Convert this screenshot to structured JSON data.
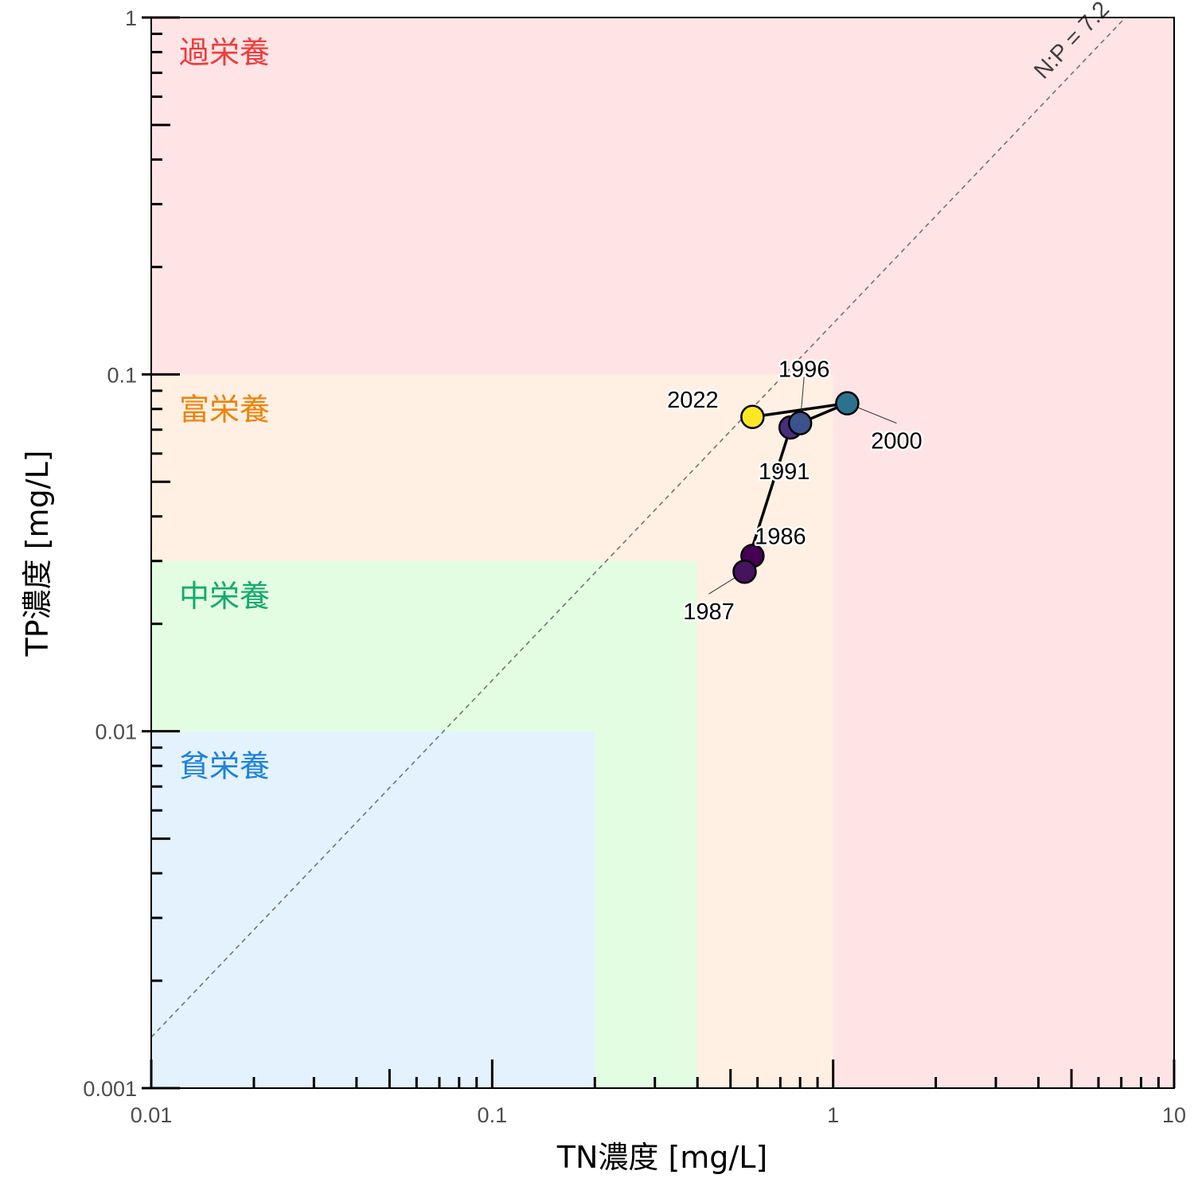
{
  "chart_data": {
    "type": "scatter",
    "xlabel": "TN濃度 [mg/L]",
    "ylabel": "TP濃度 [mg/L]",
    "xscale": "log",
    "yscale": "log",
    "xlim": [
      0.01,
      10
    ],
    "ylim": [
      0.001,
      1
    ],
    "x_ticks": [
      "0.01",
      "0.1",
      "1",
      "10"
    ],
    "y_ticks": [
      "0.001",
      "0.01",
      "0.1",
      "1"
    ],
    "grid": false,
    "zones": [
      {
        "label": "過栄養",
        "tn_max": 10,
        "tp_max": 1,
        "fill": "#ffe4e6",
        "text_color": "#f03c3c"
      },
      {
        "label": "富栄養",
        "tn_max": 1,
        "tp_max": 0.1,
        "fill": "#fff0e3",
        "text_color": "#f0820a"
      },
      {
        "label": "中栄養",
        "tn_max": 0.4,
        "tp_max": 0.03,
        "fill": "#e3fde3",
        "text_color": "#14aa6e"
      },
      {
        "label": "貧栄養",
        "tn_max": 0.2,
        "tp_max": 0.01,
        "fill": "#e4f2fd",
        "text_color": "#1e82dc"
      }
    ],
    "ratio_line": {
      "label": "N:P = 7.2",
      "ratio": 7.2
    },
    "points": [
      {
        "year": "1986",
        "x": 0.58,
        "y": 0.031,
        "color": "#440154",
        "label_dx": 35,
        "label_dy": -25,
        "leader": false
      },
      {
        "year": "1987",
        "x": 0.55,
        "y": 0.028,
        "color": "#46135f",
        "label_dx": -45,
        "label_dy": 50,
        "leader": true
      },
      {
        "year": "1991",
        "x": 0.75,
        "y": 0.071,
        "color": "#472d7b",
        "label_dx": -8,
        "label_dy": 55,
        "leader": false
      },
      {
        "year": "1996",
        "x": 0.8,
        "y": 0.073,
        "color": "#3b528b",
        "label_dx": 5,
        "label_dy": -68,
        "leader": true
      },
      {
        "year": "2000",
        "x": 1.1,
        "y": 0.083,
        "color": "#2c728e",
        "label_dx": 62,
        "label_dy": 47,
        "leader": true
      },
      {
        "year": "2022",
        "x": 0.58,
        "y": 0.076,
        "color": "#fde725",
        "label_dx": -75,
        "label_dy": -22,
        "leader": false
      }
    ],
    "path_order": [
      "1986",
      "1987",
      "1991",
      "1996",
      "2000",
      "2022"
    ]
  }
}
